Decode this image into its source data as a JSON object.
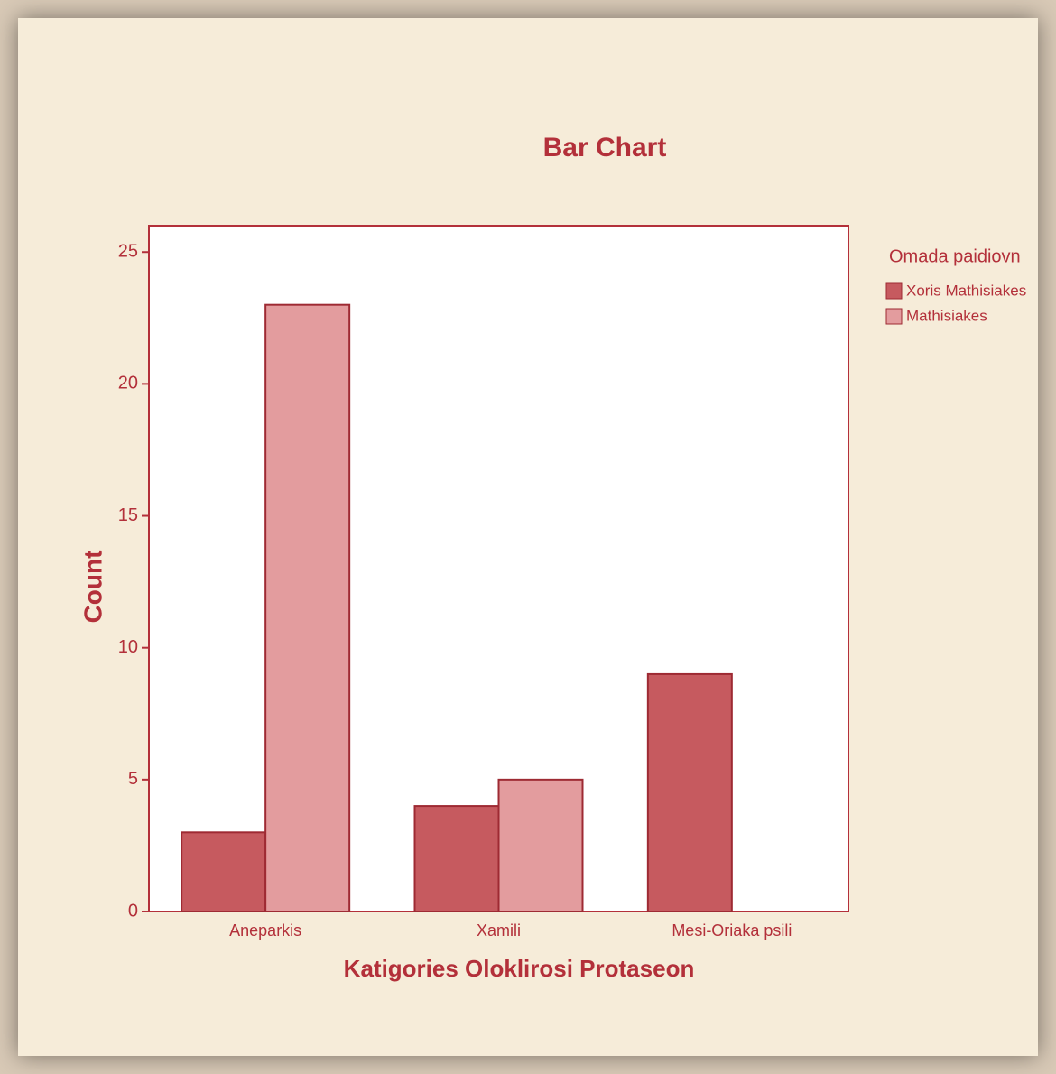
{
  "chart_data": {
    "type": "bar",
    "title": "Bar Chart",
    "x_label": "Katigories Oloklirosi Protaseon",
    "y_label": "Count",
    "categories": [
      "Aneparkis",
      "Xamili",
      "Mesi-Oriaka psili"
    ],
    "legend_title": "Omada paidiovn",
    "series": [
      {
        "name": "Xoris Mathisiakes",
        "color": "#c65a5f",
        "values": [
          3,
          4,
          9
        ]
      },
      {
        "name": "Mathisiakes",
        "color": "#e39c9e",
        "values": [
          23,
          5,
          0
        ]
      }
    ],
    "ylim": [
      0,
      26
    ],
    "yticks": [
      0,
      5,
      10,
      15,
      20,
      25
    ],
    "grid": false,
    "legend": "right"
  }
}
